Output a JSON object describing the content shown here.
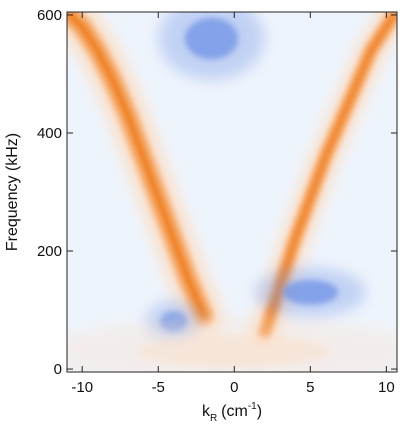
{
  "chart_data": {
    "type": "heatmap",
    "title": "",
    "xlabel": {
      "main": "k",
      "subscript": "R",
      "unit": "(cm",
      "exponent": "-1",
      "close": ")"
    },
    "ylabel": "Frequency (kHz)",
    "xlim": [
      -11,
      10.7
    ],
    "ylim": [
      -5,
      605
    ],
    "xticks": [
      -10,
      -5,
      0,
      5,
      10
    ],
    "xtick_labels": [
      "-10",
      "-5",
      "0",
      "5",
      "10"
    ],
    "yticks": [
      0,
      200,
      400,
      600
    ],
    "ytick_labels": [
      "0",
      "200",
      "400",
      "600"
    ],
    "colors": {
      "background": "#eef4fc",
      "positive_low": "#fbe1cc",
      "positive_mid": "#f6ad73",
      "positive_high": "#ef7f22",
      "negative": "#6f93e6"
    },
    "features": [
      {
        "name": "left-branch",
        "sign": "positive",
        "x": [
          -2,
          -3,
          -4,
          -5,
          -6,
          -7,
          -8,
          -9,
          -10,
          -10.8
        ],
        "y": [
          90,
          150,
          220,
          290,
          360,
          430,
          490,
          540,
          580,
          600
        ],
        "width_k": 1.1
      },
      {
        "name": "right-branch",
        "sign": "positive",
        "x": [
          2,
          3,
          4,
          5,
          6,
          7,
          8,
          9,
          10,
          10.5
        ],
        "y": [
          60,
          140,
          220,
          290,
          360,
          420,
          480,
          540,
          580,
          600
        ],
        "width_k": 0.8
      },
      {
        "name": "negative-blob-right",
        "sign": "negative",
        "center": [
          5,
          130
        ],
        "size": [
          2.6,
          30
        ]
      },
      {
        "name": "negative-blob-left",
        "sign": "negative",
        "center": [
          -4,
          80
        ],
        "size": [
          1.3,
          25
        ]
      },
      {
        "name": "negative-top-streaks",
        "sign": "negative",
        "center": [
          -1.5,
          560
        ],
        "size": [
          2.5,
          50
        ]
      },
      {
        "name": "low-frequency-bands",
        "sign": "positive",
        "center": [
          0,
          30
        ],
        "size": [
          9,
          40
        ]
      }
    ]
  }
}
